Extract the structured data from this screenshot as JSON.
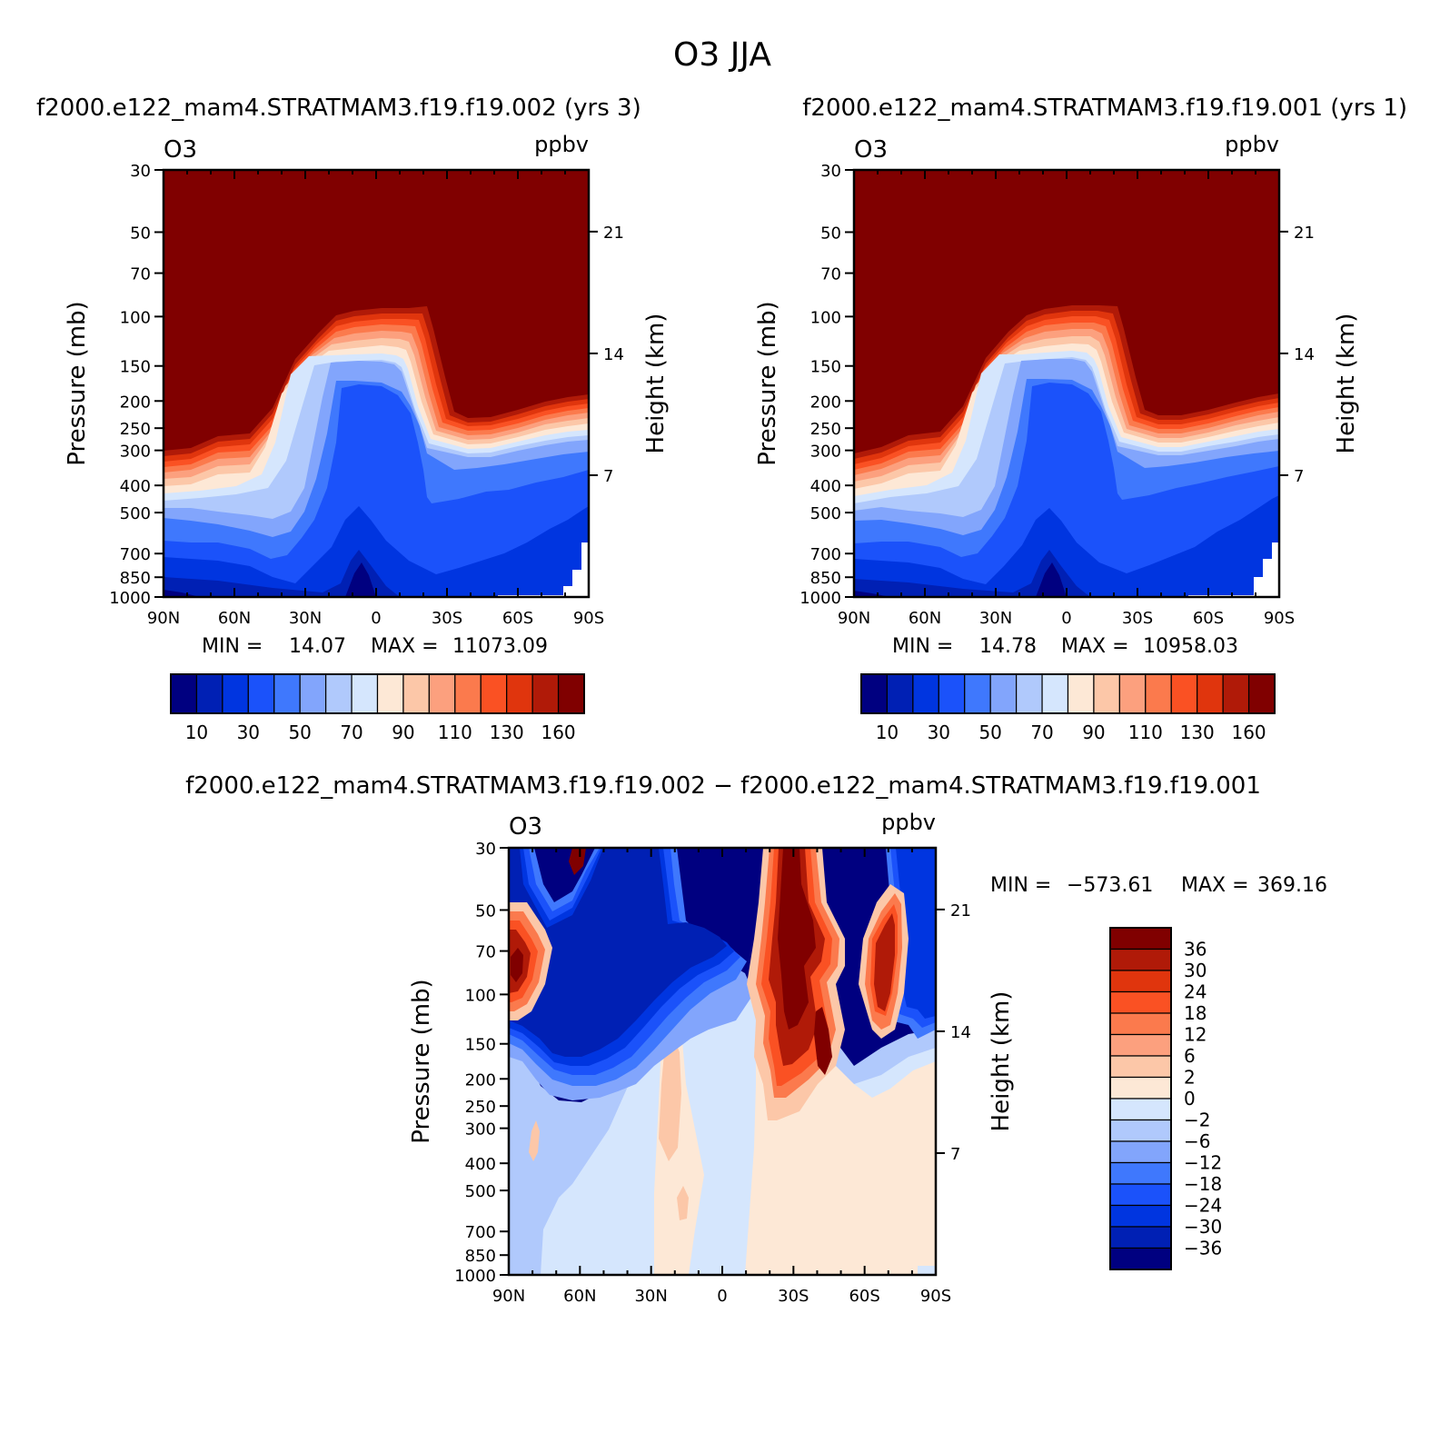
{
  "title": "O3 JJA",
  "chart_data": [
    {
      "type": "heatmap",
      "case_label": "f2000.e122_mam4.STRATMAM3.f19.f19.002 (yrs 3)",
      "variable": "O3",
      "units": "ppbv",
      "ylabel": "Pressure (mb)",
      "ylabel_right": "Height (km)",
      "x_ticks": [
        "90N",
        "60N",
        "30N",
        "0",
        "30S",
        "60S",
        "90S"
      ],
      "x_range": [
        90,
        -90
      ],
      "y_ticks": [
        30,
        50,
        70,
        100,
        150,
        200,
        250,
        300,
        400,
        500,
        700,
        850,
        1000
      ],
      "y_range": [
        30,
        1000
      ],
      "height_ticks": [
        21,
        14,
        7
      ],
      "min_label": "MIN =",
      "min_value": "14.07",
      "max_label": "MAX =",
      "max_value": "11073.09",
      "colorbar_labels": [
        "10",
        "30",
        "50",
        "70",
        "90",
        "110",
        "130",
        "160"
      ]
    },
    {
      "type": "heatmap",
      "case_label": "f2000.e122_mam4.STRATMAM3.f19.f19.001 (yrs 1)",
      "variable": "O3",
      "units": "ppbv",
      "ylabel": "Pressure (mb)",
      "ylabel_right": "Height (km)",
      "x_ticks": [
        "90N",
        "60N",
        "30N",
        "0",
        "30S",
        "60S",
        "90S"
      ],
      "x_range": [
        90,
        -90
      ],
      "y_ticks": [
        30,
        50,
        70,
        100,
        150,
        200,
        250,
        300,
        400,
        500,
        700,
        850,
        1000
      ],
      "y_range": [
        30,
        1000
      ],
      "height_ticks": [
        21,
        14,
        7
      ],
      "min_label": "MIN =",
      "min_value": "14.78",
      "max_label": "MAX =",
      "max_value": "10958.03",
      "colorbar_labels": [
        "10",
        "30",
        "50",
        "70",
        "90",
        "110",
        "130",
        "160"
      ]
    },
    {
      "type": "heatmap",
      "case_label": "f2000.e122_mam4.STRATMAM3.f19.f19.002 − f2000.e122_mam4.STRATMAM3.f19.f19.001",
      "variable": "O3",
      "units": "ppbv",
      "ylabel": "Pressure (mb)",
      "ylabel_right": "Height (km)",
      "x_ticks": [
        "90N",
        "60N",
        "30N",
        "0",
        "30S",
        "60S",
        "90S"
      ],
      "x_range": [
        90,
        -90
      ],
      "y_ticks": [
        30,
        50,
        70,
        100,
        150,
        200,
        250,
        300,
        400,
        500,
        700,
        850,
        1000
      ],
      "y_range": [
        30,
        1000
      ],
      "height_ticks": [
        21,
        14,
        7
      ],
      "min_label": "MIN =",
      "min_value": "−573.61",
      "max_label": "MAX =",
      "max_value": "369.16",
      "colorbar_labels": [
        "36",
        "30",
        "24",
        "18",
        "12",
        "6",
        "2",
        "0",
        "−2",
        "−6",
        "−12",
        "−18",
        "−24",
        "−30",
        "−36"
      ]
    }
  ],
  "colors": {
    "seq": [
      "#000080",
      "#0020b4",
      "#0035e0",
      "#1b52fa",
      "#3f78fd",
      "#82a5fc",
      "#b0c9fc",
      "#d5e6fd",
      "#fde8d6",
      "#fcc7a8",
      "#fca07e",
      "#fb7a4d",
      "#fa5123",
      "#e0350d",
      "#b01a08",
      "#800000"
    ],
    "diff": [
      "#800000",
      "#b01a08",
      "#e0350d",
      "#fa5123",
      "#fb7a4d",
      "#fca07e",
      "#fcc7a8",
      "#fde8d6",
      "#d5e6fd",
      "#b0c9fc",
      "#82a5fc",
      "#3f78fd",
      "#1b52fa",
      "#0035e0",
      "#0020b4",
      "#000080"
    ]
  }
}
